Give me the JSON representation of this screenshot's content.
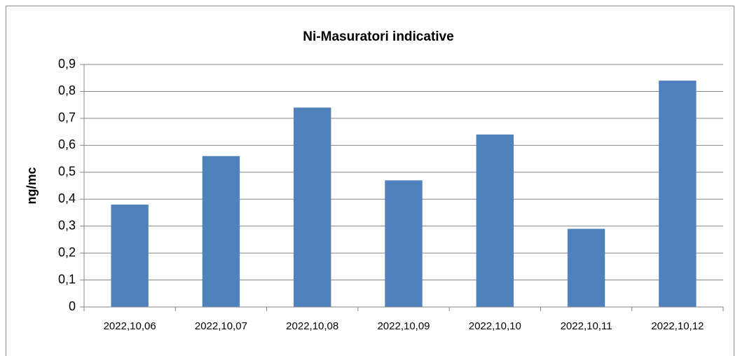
{
  "chart_data": {
    "type": "bar",
    "title": "Ni-Masuratori indicative",
    "y_label": "ng/mc",
    "categories": [
      "2022,10,06",
      "2022,10,07",
      "2022,10,08",
      "2022,10,09",
      "2022,10,10",
      "2022,10,11",
      "2022,10,12"
    ],
    "values": [
      0.38,
      0.56,
      0.74,
      0.47,
      0.64,
      0.29,
      0.84
    ],
    "color": "#4f81bd",
    "ylim": [
      0,
      0.9
    ],
    "yticks": [
      0,
      {
        "value": 0.1,
        "label": "0,1"
      },
      {
        "value": 0.2,
        "label": "0,2"
      },
      {
        "value": 0.3,
        "label": "0,3"
      },
      {
        "value": 0.4,
        "label": "0,4"
      },
      {
        "value": 0.5,
        "label": "0,5"
      },
      {
        "value": 0.6,
        "label": "0,6"
      },
      {
        "value": 0.7,
        "label": "0,7"
      },
      {
        "value": 0.8,
        "label": "0,8"
      },
      {
        "value": 0.9,
        "label": "0,9"
      }
    ],
    "grid": true
  }
}
